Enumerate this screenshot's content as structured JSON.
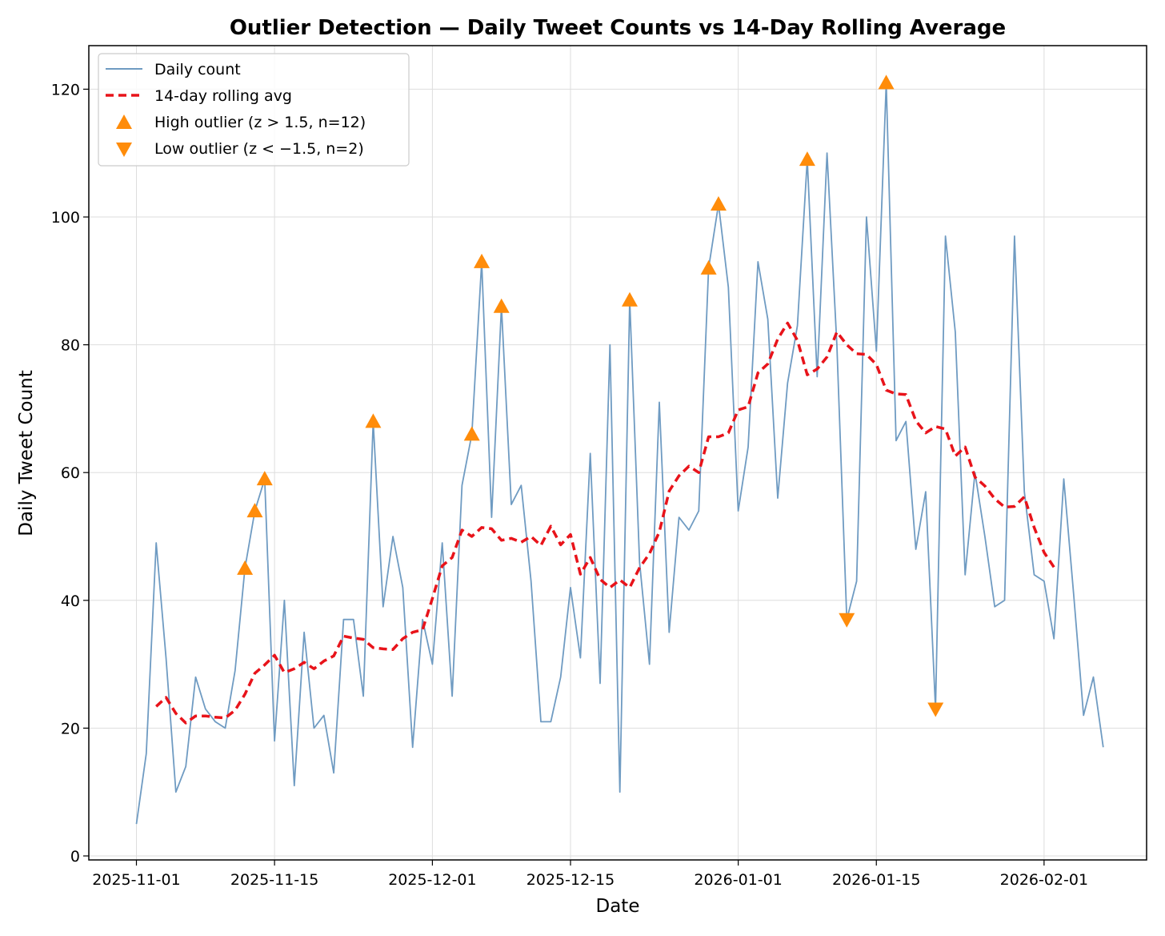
{
  "chart_data": {
    "type": "line",
    "title": "Outlier Detection — Daily Tweet Counts vs 14-Day Rolling Average",
    "xlabel": "Date",
    "ylabel": "Daily Tweet Count",
    "ylim": [
      0,
      127
    ],
    "y_ticks": [
      0,
      20,
      40,
      60,
      80,
      100,
      120
    ],
    "x_ticks": [
      {
        "day": 0,
        "label": "2025-11-01"
      },
      {
        "day": 14,
        "label": "2025-11-15"
      },
      {
        "day": 30,
        "label": "2025-12-01"
      },
      {
        "day": 44,
        "label": "2025-12-15"
      },
      {
        "day": 61,
        "label": "2026-01-01"
      },
      {
        "day": 75,
        "label": "2026-01-15"
      },
      {
        "day": 92,
        "label": "2026-02-01"
      }
    ],
    "x_range_days": [
      -5,
      102
    ],
    "start_date": "2025-11-01",
    "grid": true,
    "legend_position": "top-left",
    "colors": {
      "daily": "#6f9bc2",
      "rolling": "#e8131a",
      "outlier": "#ff8c0a"
    },
    "series": [
      {
        "name": "Daily count",
        "style": "solid",
        "values": [
          5,
          16,
          49,
          31,
          10,
          14,
          28,
          23,
          21,
          20,
          29,
          45,
          54,
          59,
          18,
          40,
          11,
          35,
          20,
          22,
          13,
          37,
          37,
          25,
          68,
          39,
          50,
          42,
          17,
          37,
          30,
          49,
          25,
          58,
          66,
          93,
          53,
          86,
          55,
          58,
          43,
          21,
          21,
          28,
          42,
          31,
          63,
          27,
          80,
          10,
          87,
          46,
          30,
          71,
          35,
          53,
          51,
          54,
          92,
          102,
          89,
          54,
          64,
          93,
          84,
          56,
          74,
          83,
          109,
          75,
          110,
          80,
          37,
          43,
          100,
          79,
          121,
          65,
          68,
          48,
          57,
          23,
          97,
          82,
          44,
          60,
          50,
          39,
          40,
          97,
          57,
          44,
          43,
          34,
          59,
          41,
          22,
          28,
          17
        ]
      },
      {
        "name": "14-day rolling avg",
        "style": "dashed",
        "start_day": 2,
        "values": [
          23.4,
          24.8,
          22.3,
          20.8,
          21.9,
          21.9,
          21.7,
          21.6,
          22.8,
          25.3,
          28.6,
          29.9,
          31.4,
          28.7,
          29.3,
          30.3,
          29.3,
          30.5,
          31.3,
          34.4,
          34.1,
          33.9,
          32.6,
          32.4,
          32.3,
          34,
          35,
          35.4,
          40.3,
          45.4,
          46.7,
          51,
          50,
          51.4,
          51.2,
          49.4,
          49.7,
          49.1,
          50,
          48.6,
          51.6,
          48.7,
          50.3,
          44.1,
          46.7,
          43.3,
          42,
          43.2,
          42,
          45.1,
          47.3,
          50.7,
          57.1,
          59.5,
          61,
          60,
          65.6,
          65.6,
          66.2,
          69.8,
          70.3,
          75.6,
          77,
          80.9,
          83.4,
          80.7,
          75.3,
          76.2,
          78.1,
          82,
          80,
          78.6,
          78.5,
          76.9,
          72.9,
          72.3,
          72.2,
          68.1,
          66.2,
          67.2,
          66.8,
          62.6,
          64,
          59.3,
          57.9,
          55.9,
          54.6,
          54.7,
          56.2,
          51.4,
          47.5,
          45.2
        ]
      }
    ],
    "high_outliers": {
      "label": "High outlier (z > 1.5, n=12)",
      "points": [
        {
          "day": 11,
          "value": 45
        },
        {
          "day": 12,
          "value": 54
        },
        {
          "day": 13,
          "value": 59
        },
        {
          "day": 24,
          "value": 68
        },
        {
          "day": 34,
          "value": 66
        },
        {
          "day": 35,
          "value": 93
        },
        {
          "day": 37,
          "value": 86
        },
        {
          "day": 50,
          "value": 87
        },
        {
          "day": 58,
          "value": 92
        },
        {
          "day": 59,
          "value": 102
        },
        {
          "day": 68,
          "value": 109
        },
        {
          "day": 76,
          "value": 121
        }
      ]
    },
    "low_outliers": {
      "label": "Low outlier (z < −1.5, n=2)",
      "points": [
        {
          "day": 72,
          "value": 37
        },
        {
          "day": 81,
          "value": 23
        }
      ]
    }
  }
}
